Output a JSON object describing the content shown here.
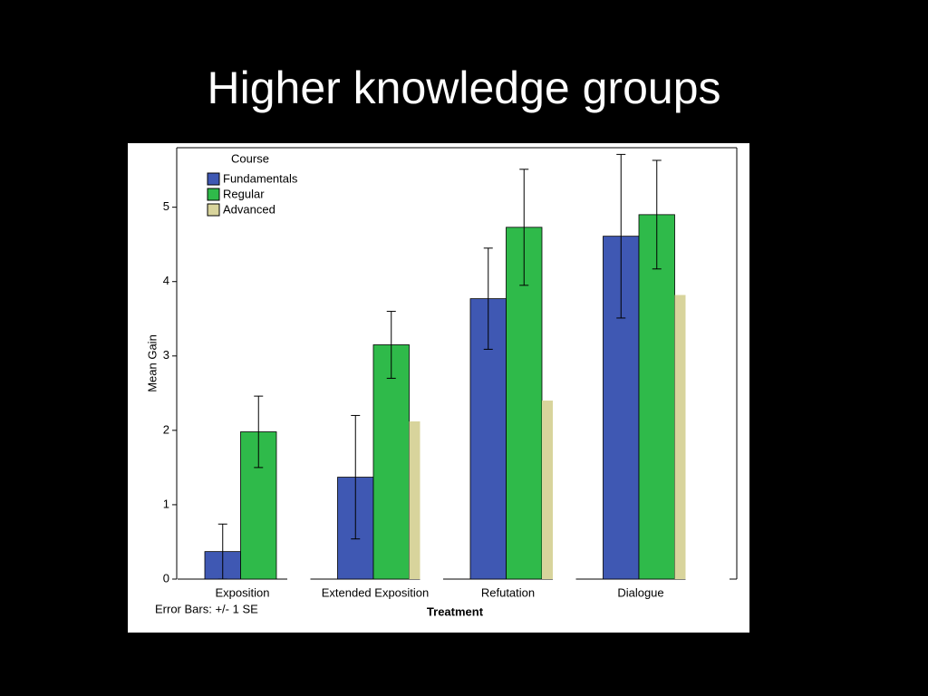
{
  "title": "Higher knowledge groups",
  "chart_data": {
    "type": "bar",
    "x_label": "Treatment",
    "y_label": "Mean Gain",
    "legend_title": "Course",
    "note": "Error Bars: +/- 1 SE",
    "categories": [
      "Exposition",
      "Extended Exposition",
      "Refutation",
      "Dialogue"
    ],
    "series": [
      {
        "name": "Fundamentals",
        "color": "#3f58b3",
        "values": [
          0.37,
          1.37,
          3.77,
          4.61
        ],
        "errors": [
          0.37,
          0.83,
          0.68,
          1.1
        ]
      },
      {
        "name": "Regular",
        "color": "#2fba4a",
        "values": [
          1.98,
          3.15,
          4.73,
          4.9
        ],
        "errors": [
          0.48,
          0.45,
          0.78,
          0.73
        ]
      },
      {
        "name": "Advanced",
        "color": "#d8d49c",
        "values": [
          null,
          2.12,
          2.4,
          3.82
        ]
      }
    ],
    "ylim": [
      0,
      5.8
    ],
    "yticks": [
      0,
      1,
      2,
      3,
      4,
      5
    ]
  }
}
